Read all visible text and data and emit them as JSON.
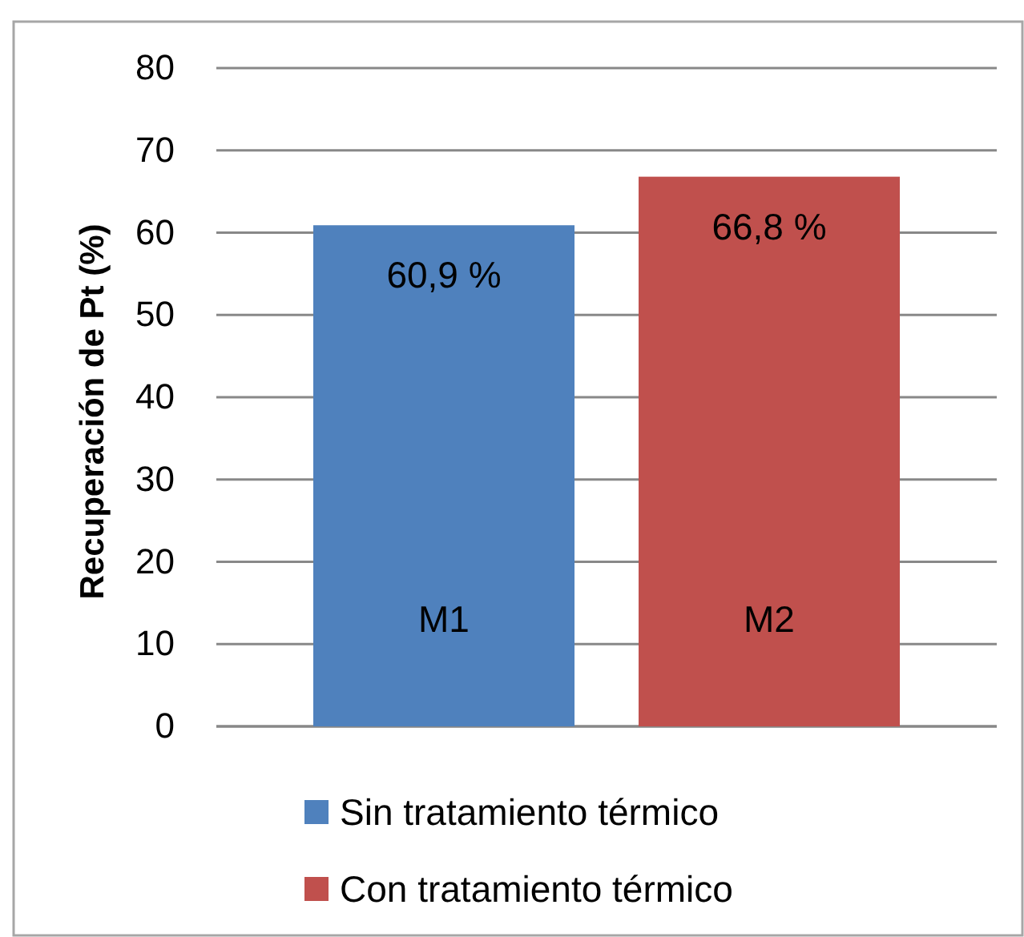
{
  "chart_data": {
    "type": "bar",
    "ylabel": "Recuperación de Pt (%)",
    "categories": [
      "M1",
      "M2"
    ],
    "series": [
      {
        "name": "Sin tratamiento térmico",
        "color": "#4f81bd",
        "values": [
          60.9,
          null
        ],
        "value_labels": [
          "60,9 %",
          null
        ]
      },
      {
        "name": "Con tratamiento térmico",
        "color": "#c0504d",
        "values": [
          null,
          66.8
        ],
        "value_labels": [
          null,
          "66,8 %"
        ]
      }
    ],
    "ylim": [
      0,
      80
    ],
    "yticks": [
      0,
      10,
      20,
      30,
      40,
      50,
      60,
      70,
      80
    ],
    "grid": "y",
    "legend": "bottom"
  }
}
